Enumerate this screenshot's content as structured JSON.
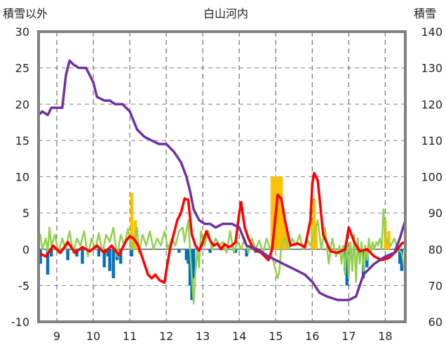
{
  "chart_data": {
    "type": "line",
    "title": "白山河内",
    "left_axis_label": "積雪以外",
    "right_axis_label": "積雪",
    "y_left": {
      "min": -10,
      "max": 30,
      "ticks": [
        30,
        25,
        20,
        15,
        10,
        5,
        0,
        -5,
        -10
      ]
    },
    "y_right": {
      "min": 60,
      "max": 140,
      "ticks": [
        140,
        130,
        120,
        110,
        100,
        90,
        80,
        70,
        60
      ]
    },
    "x": {
      "min": 8.5,
      "max": 18.55,
      "ticks": [
        9,
        10,
        11,
        12,
        13,
        14,
        15,
        16,
        17,
        18
      ]
    },
    "grid": "dashed-vertical",
    "colors": {
      "temperature": "#ff0000",
      "snow_depth": "#7030a0",
      "snowfall": "#ffc000",
      "precip_bar": "#0070c0",
      "green_line": "#92d050",
      "zero_line": "#808080",
      "frame": "#808080"
    },
    "series": [
      {
        "axis": "left",
        "kind": "line",
        "color_key": "temperature",
        "points": [
          [
            8.5,
            -0.5
          ],
          [
            8.7,
            -1
          ],
          [
            8.9,
            0.5
          ],
          [
            9.1,
            -0.5
          ],
          [
            9.3,
            1
          ],
          [
            9.5,
            -0.5
          ],
          [
            9.7,
            0.3
          ],
          [
            9.9,
            -0.3
          ],
          [
            10.1,
            0.5
          ],
          [
            10.3,
            -0.5
          ],
          [
            10.5,
            0.5
          ],
          [
            10.7,
            -0.8
          ],
          [
            10.9,
            1.2
          ],
          [
            11,
            1.8
          ],
          [
            11.1,
            1.5
          ],
          [
            11.2,
            0.8
          ],
          [
            11.3,
            -0.5
          ],
          [
            11.4,
            -2
          ],
          [
            11.5,
            -3.5
          ],
          [
            11.6,
            -4
          ],
          [
            11.7,
            -3.5
          ],
          [
            11.8,
            -4.2
          ],
          [
            11.9,
            -4.5
          ],
          [
            11.95,
            -4.6
          ],
          [
            12,
            -3
          ],
          [
            12.1,
            0
          ],
          [
            12.2,
            2
          ],
          [
            12.3,
            4
          ],
          [
            12.4,
            5
          ],
          [
            12.5,
            7
          ],
          [
            12.6,
            6.8
          ],
          [
            12.7,
            2
          ],
          [
            12.8,
            0.5
          ],
          [
            12.9,
            -0.2
          ],
          [
            13,
            1
          ],
          [
            13.1,
            2.5
          ],
          [
            13.2,
            1.2
          ],
          [
            13.3,
            0.5
          ],
          [
            13.4,
            0.8
          ],
          [
            13.5,
            0
          ],
          [
            13.6,
            0.7
          ],
          [
            13.7,
            0.3
          ],
          [
            13.8,
            0.5
          ],
          [
            13.9,
            1
          ],
          [
            14,
            5
          ],
          [
            14.05,
            6.5
          ],
          [
            14.15,
            3
          ],
          [
            14.25,
            1.5
          ],
          [
            14.4,
            0
          ],
          [
            14.6,
            -0.5
          ],
          [
            14.8,
            -1.5
          ],
          [
            14.9,
            0
          ],
          [
            15,
            5
          ],
          [
            15.05,
            7.5
          ],
          [
            15.15,
            7
          ],
          [
            15.25,
            4
          ],
          [
            15.4,
            0.5
          ],
          [
            15.6,
            0.8
          ],
          [
            15.8,
            0.3
          ],
          [
            15.95,
            4
          ],
          [
            16,
            9
          ],
          [
            16.05,
            10.5
          ],
          [
            16.15,
            9.5
          ],
          [
            16.3,
            2
          ],
          [
            16.5,
            -0.3
          ],
          [
            16.7,
            -0.5
          ],
          [
            16.9,
            0
          ],
          [
            17,
            3
          ],
          [
            17.15,
            1
          ],
          [
            17.3,
            -0.3
          ],
          [
            17.5,
            0
          ],
          [
            17.7,
            -1
          ],
          [
            17.9,
            -1.5
          ],
          [
            18.1,
            -1.2
          ],
          [
            18.3,
            -0.3
          ],
          [
            18.45,
            0.8
          ],
          [
            18.55,
            1
          ]
        ]
      },
      {
        "axis": "right",
        "kind": "line",
        "color_key": "snow_depth",
        "points": [
          [
            8.5,
            117
          ],
          [
            8.6,
            118
          ],
          [
            8.75,
            117
          ],
          [
            8.85,
            119
          ],
          [
            9.0,
            119
          ],
          [
            9.15,
            119
          ],
          [
            9.25,
            128
          ],
          [
            9.35,
            132
          ],
          [
            9.45,
            131
          ],
          [
            9.6,
            130
          ],
          [
            9.8,
            130
          ],
          [
            10.0,
            126
          ],
          [
            10.1,
            122
          ],
          [
            10.3,
            121
          ],
          [
            10.45,
            121
          ],
          [
            10.6,
            120
          ],
          [
            10.8,
            120
          ],
          [
            11.0,
            118
          ],
          [
            11.2,
            113
          ],
          [
            11.4,
            111
          ],
          [
            11.6,
            110
          ],
          [
            11.8,
            109
          ],
          [
            12.0,
            109
          ],
          [
            12.2,
            107
          ],
          [
            12.4,
            104
          ],
          [
            12.55,
            100
          ],
          [
            12.65,
            96
          ],
          [
            12.75,
            91
          ],
          [
            12.9,
            88
          ],
          [
            13.05,
            87
          ],
          [
            13.2,
            87
          ],
          [
            13.35,
            86
          ],
          [
            13.55,
            87
          ],
          [
            13.8,
            87
          ],
          [
            14.0,
            86
          ],
          [
            14.2,
            81
          ],
          [
            14.5,
            80
          ],
          [
            14.65,
            79
          ],
          [
            14.8,
            78
          ],
          [
            15.0,
            77
          ],
          [
            15.2,
            76
          ],
          [
            15.4,
            75
          ],
          [
            15.6,
            74
          ],
          [
            15.8,
            73
          ],
          [
            16.0,
            71
          ],
          [
            16.2,
            68
          ],
          [
            16.4,
            67
          ],
          [
            16.7,
            66
          ],
          [
            16.9,
            66
          ],
          [
            17.0,
            66
          ],
          [
            17.2,
            67
          ],
          [
            17.4,
            73
          ],
          [
            17.5,
            74
          ],
          [
            17.7,
            76
          ],
          [
            18.0,
            78
          ],
          [
            18.25,
            79
          ],
          [
            18.4,
            83
          ],
          [
            18.55,
            88
          ]
        ]
      },
      {
        "axis": "left",
        "kind": "line",
        "color_key": "green_line",
        "points": [
          [
            8.5,
            1
          ],
          [
            8.55,
            2
          ],
          [
            8.6,
            0
          ],
          [
            8.7,
            1.5
          ],
          [
            8.75,
            -0.5
          ],
          [
            8.8,
            3
          ],
          [
            8.85,
            0.5
          ],
          [
            8.95,
            2
          ],
          [
            9.05,
            -0.5
          ],
          [
            9.15,
            1.5
          ],
          [
            9.25,
            0
          ],
          [
            9.35,
            2.5
          ],
          [
            9.45,
            -0.5
          ],
          [
            9.55,
            1.5
          ],
          [
            9.65,
            0.5
          ],
          [
            9.75,
            2.5
          ],
          [
            9.85,
            -1
          ],
          [
            9.95,
            1.5
          ],
          [
            10.05,
            0
          ],
          [
            10.15,
            2.2
          ],
          [
            10.25,
            -0.5
          ],
          [
            10.35,
            2
          ],
          [
            10.45,
            1
          ],
          [
            10.55,
            3
          ],
          [
            10.65,
            -1
          ],
          [
            10.75,
            2
          ],
          [
            10.85,
            0.5
          ],
          [
            10.95,
            2.8
          ],
          [
            11.05,
            0
          ],
          [
            11.15,
            1.5
          ],
          [
            11.2,
            3
          ],
          [
            11.25,
            -0.5
          ],
          [
            11.35,
            2
          ],
          [
            11.45,
            0.5
          ],
          [
            11.55,
            2.5
          ],
          [
            11.65,
            0
          ],
          [
            11.75,
            1.5
          ],
          [
            11.85,
            0.5
          ],
          [
            11.95,
            2.5
          ],
          [
            12.05,
            0
          ],
          [
            12.15,
            1.5
          ],
          [
            12.25,
            0.5
          ],
          [
            12.35,
            2.5
          ],
          [
            12.45,
            3
          ],
          [
            12.5,
            1
          ],
          [
            12.6,
            4
          ],
          [
            12.65,
            0
          ],
          [
            12.7,
            -4
          ],
          [
            12.75,
            -7.5
          ],
          [
            12.8,
            -3
          ],
          [
            12.85,
            0
          ],
          [
            12.9,
            -2.5
          ],
          [
            12.95,
            2.5
          ],
          [
            13.05,
            0.5
          ],
          [
            13.15,
            2.5
          ],
          [
            13.25,
            0
          ],
          [
            13.35,
            1.5
          ],
          [
            13.45,
            0.5
          ],
          [
            13.55,
            1
          ],
          [
            13.65,
            -0.5
          ],
          [
            13.75,
            2.5
          ],
          [
            13.85,
            -0.5
          ],
          [
            13.95,
            1
          ],
          [
            14.05,
            0
          ],
          [
            14.15,
            1.5
          ],
          [
            14.25,
            -0.5
          ],
          [
            14.35,
            1.5
          ],
          [
            14.45,
            0
          ],
          [
            14.55,
            1.2
          ],
          [
            14.65,
            -0.5
          ],
          [
            14.75,
            1.5
          ],
          [
            14.85,
            0
          ],
          [
            14.95,
            -2
          ],
          [
            15.05,
            -4
          ],
          [
            15.1,
            -3
          ],
          [
            15.15,
            0.5
          ],
          [
            15.25,
            1.5
          ],
          [
            15.35,
            0
          ],
          [
            15.45,
            1.5
          ],
          [
            15.55,
            0.5
          ],
          [
            15.65,
            2
          ],
          [
            15.75,
            0
          ],
          [
            15.85,
            1.5
          ],
          [
            15.95,
            0.5
          ],
          [
            16.05,
            2
          ],
          [
            16.15,
            4
          ],
          [
            16.25,
            0
          ],
          [
            16.35,
            3
          ],
          [
            16.45,
            -2
          ],
          [
            16.55,
            1.5
          ],
          [
            16.65,
            -1
          ],
          [
            16.75,
            0.5
          ],
          [
            16.8,
            -2
          ],
          [
            16.85,
            0.5
          ],
          [
            16.9,
            -3.5
          ],
          [
            16.95,
            2
          ],
          [
            17.0,
            -4
          ],
          [
            17.05,
            1
          ],
          [
            17.1,
            -3
          ],
          [
            17.15,
            2
          ],
          [
            17.2,
            -4.5
          ],
          [
            17.25,
            1.5
          ],
          [
            17.3,
            -2
          ],
          [
            17.35,
            1
          ],
          [
            17.4,
            -3
          ],
          [
            17.45,
            0.5
          ],
          [
            17.5,
            -1.5
          ],
          [
            17.55,
            1.5
          ],
          [
            17.6,
            -0.5
          ],
          [
            17.65,
            1
          ],
          [
            17.7,
            0
          ],
          [
            17.75,
            1
          ],
          [
            17.8,
            0.5
          ],
          [
            17.85,
            1.5
          ],
          [
            17.9,
            0
          ],
          [
            17.95,
            5.5
          ],
          [
            18.0,
            2
          ],
          [
            18.05,
            1
          ],
          [
            18.15,
            0.5
          ],
          [
            18.25,
            1.5
          ],
          [
            18.35,
            0
          ],
          [
            18.45,
            -0.5
          ],
          [
            18.55,
            -3.5
          ]
        ]
      },
      {
        "axis": "left",
        "kind": "bars",
        "color_key": "snowfall",
        "points": [
          [
            11.05,
            7.8
          ],
          [
            11.1,
            2
          ],
          [
            11.15,
            4
          ],
          [
            14.9,
            10
          ],
          [
            14.95,
            10
          ],
          [
            15.0,
            10
          ],
          [
            15.05,
            10
          ],
          [
            15.1,
            10
          ],
          [
            15.15,
            10
          ],
          [
            15.2,
            5
          ],
          [
            15.25,
            4
          ],
          [
            15.3,
            3
          ],
          [
            16.0,
            4
          ],
          [
            16.05,
            7
          ],
          [
            16.1,
            3
          ],
          [
            18.0,
            4
          ],
          [
            18.05,
            1.5
          ],
          [
            18.1,
            2.5
          ]
        ]
      },
      {
        "axis": "left",
        "kind": "bars",
        "color_key": "precip_bar",
        "points": [
          [
            8.55,
            -2
          ],
          [
            8.75,
            -3.5
          ],
          [
            8.85,
            -1
          ],
          [
            9.3,
            -1.5
          ],
          [
            9.55,
            -1
          ],
          [
            9.7,
            -2
          ],
          [
            10.15,
            -1
          ],
          [
            10.3,
            -2.5
          ],
          [
            10.4,
            -1
          ],
          [
            10.45,
            -3
          ],
          [
            10.55,
            -4
          ],
          [
            10.65,
            -1.5
          ],
          [
            10.75,
            -2
          ],
          [
            11.05,
            -1
          ],
          [
            12.35,
            -0.5
          ],
          [
            12.55,
            -1.5
          ],
          [
            12.6,
            -2
          ],
          [
            12.65,
            -5
          ],
          [
            12.7,
            -7
          ],
          [
            12.75,
            -4
          ],
          [
            13.2,
            -0.5
          ],
          [
            13.9,
            -0.5
          ],
          [
            14.2,
            -1
          ],
          [
            14.45,
            -0.5
          ],
          [
            16.9,
            -3
          ],
          [
            16.95,
            -5
          ],
          [
            17.4,
            -4
          ],
          [
            17.5,
            -2.5
          ],
          [
            18.4,
            -2
          ],
          [
            18.45,
            -3
          ]
        ]
      }
    ]
  }
}
